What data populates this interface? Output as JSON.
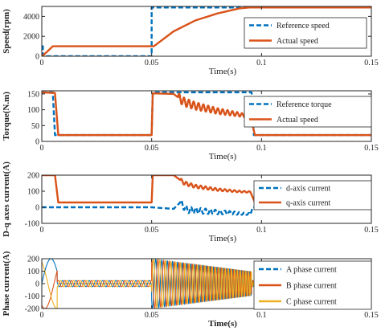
{
  "chart_data": [
    {
      "type": "line",
      "ylabel": "Speed(rpm)",
      "xlabel": "Time(s)",
      "xlim": [
        0,
        0.15
      ],
      "ylim": [
        0,
        5000
      ],
      "xticks": [
        "0",
        "0.05",
        "0.1",
        "0.15"
      ],
      "yticks": [
        "0",
        "2000",
        "4000"
      ],
      "ytick_values": [
        0,
        2000,
        4000
      ],
      "legend_position": "right",
      "series": [
        {
          "name": "Reference speed",
          "color": "#0072BD",
          "style": "dashed",
          "points": [
            [
              0,
              1000
            ],
            [
              0.0005,
              1000
            ],
            [
              0.0005,
              0
            ],
            [
              0.05,
              0
            ],
            [
              0.05,
              4900
            ],
            [
              0.15,
              4900
            ]
          ]
        },
        {
          "name": "Actual speed",
          "color": "#D95319",
          "style": "solid",
          "points": [
            [
              0,
              0
            ],
            [
              0.0002,
              0
            ],
            [
              0.005,
              1000
            ],
            [
              0.051,
              1000
            ],
            [
              0.06,
              2500
            ],
            [
              0.07,
              3600
            ],
            [
              0.08,
              4300
            ],
            [
              0.09,
              4800
            ],
            [
              0.095,
              4900
            ],
            [
              0.15,
              4900
            ]
          ]
        }
      ]
    },
    {
      "type": "line",
      "ylabel": "Torque(N.m)",
      "xlabel": "Time(s)",
      "xlim": [
        0,
        0.15
      ],
      "ylim": [
        0,
        160
      ],
      "xticks": [
        "0",
        "0.05",
        "0.1",
        "0.15"
      ],
      "yticks": [
        "0",
        "50",
        "100",
        "150"
      ],
      "ytick_values": [
        0,
        50,
        100,
        150
      ],
      "legend_position": "right",
      "series": [
        {
          "name": "Reference torque",
          "color": "#0072BD",
          "style": "dashed",
          "points": [
            [
              0,
              155
            ],
            [
              0.005,
              155
            ],
            [
              0.006,
              20
            ],
            [
              0.05,
              20
            ],
            [
              0.0505,
              155
            ],
            [
              0.0955,
              155
            ],
            [
              0.0965,
              20
            ],
            [
              0.15,
              20
            ]
          ]
        },
        {
          "name": "Actual speed",
          "color": "#D95319",
          "style": "solid",
          "oscillate": {
            "from": 0.062,
            "to": 0.095,
            "amp_start": 14,
            "amp_end": 5,
            "period": 0.0022
          },
          "points": [
            [
              0,
              155
            ],
            [
              0.006,
              153
            ],
            [
              0.0075,
              20
            ],
            [
              0.05,
              20
            ],
            [
              0.0505,
              152
            ],
            [
              0.06,
              150
            ],
            [
              0.065,
              124
            ],
            [
              0.07,
              112
            ],
            [
              0.08,
              96
            ],
            [
              0.09,
              85
            ],
            [
              0.095,
              78
            ],
            [
              0.097,
              20
            ],
            [
              0.15,
              20
            ]
          ]
        }
      ]
    },
    {
      "type": "line",
      "ylabel": "D-q axes current(A)",
      "xlabel": "Time(s)",
      "xlim": [
        0,
        0.15
      ],
      "ylim": [
        -100,
        200
      ],
      "xticks": [
        "0",
        "0.05",
        "0.1",
        "0.15"
      ],
      "yticks": [
        "-100",
        "0",
        "100",
        "200"
      ],
      "ytick_values": [
        -100,
        0,
        100,
        200
      ],
      "legend_position": "right",
      "series": [
        {
          "name": "d-axis current",
          "color": "#0072BD",
          "style": "dashed",
          "oscillate": {
            "from": 0.063,
            "to": 0.095,
            "amp_start": 22,
            "amp_end": 6,
            "period": 0.0022
          },
          "points": [
            [
              0,
              0
            ],
            [
              0.05,
              0
            ],
            [
              0.06,
              -10
            ],
            [
              0.063,
              30
            ],
            [
              0.066,
              -15
            ],
            [
              0.07,
              -20
            ],
            [
              0.08,
              -30
            ],
            [
              0.09,
              -38
            ],
            [
              0.095,
              -42
            ],
            [
              0.096,
              0
            ],
            [
              0.15,
              0
            ]
          ]
        },
        {
          "name": "q-axis current",
          "color": "#D95319",
          "style": "solid",
          "oscillate": {
            "from": 0.063,
            "to": 0.095,
            "amp_start": 12,
            "amp_end": 4,
            "period": 0.0022
          },
          "points": [
            [
              0,
              200
            ],
            [
              0.006,
              200
            ],
            [
              0.0075,
              30
            ],
            [
              0.05,
              30
            ],
            [
              0.0505,
              200
            ],
            [
              0.06,
              200
            ],
            [
              0.065,
              150
            ],
            [
              0.07,
              130
            ],
            [
              0.08,
              110
            ],
            [
              0.09,
              98
            ],
            [
              0.095,
              95
            ],
            [
              0.097,
              30
            ],
            [
              0.15,
              30
            ]
          ]
        }
      ]
    },
    {
      "type": "line",
      "ylabel": "Phase current(A)",
      "xlabel": "Time(s)",
      "xlim": [
        0,
        0.15
      ],
      "ylim": [
        -200,
        200
      ],
      "xticks": [
        "0",
        "0.05",
        "0.1",
        "0.15"
      ],
      "yticks": [
        "-200",
        "-100",
        "0",
        "100",
        "200"
      ],
      "ytick_values": [
        -200,
        -100,
        0,
        100,
        200
      ],
      "legend_position": "right",
      "series": [
        {
          "name": "A phase current",
          "color": "#0072BD",
          "style": "dashed",
          "phase_deg": 0
        },
        {
          "name": "B phase current",
          "color": "#D95319",
          "style": "solid",
          "phase_deg": -120
        },
        {
          "name": "C phase current",
          "color": "#EDB120",
          "style": "solid",
          "phase_deg": 120
        }
      ],
      "phase_model": [
        {
          "t0": 0,
          "t1": 0.007,
          "amp0": 200,
          "amp1": 200,
          "freq0": 60,
          "freq1": 60
        },
        {
          "t0": 0.007,
          "t1": 0.05,
          "amp0": 25,
          "amp1": 25,
          "freq0": 330,
          "freq1": 330
        },
        {
          "t0": 0.05,
          "t1": 0.0955,
          "amp0": 200,
          "amp1": 95,
          "freq0": 330,
          "freq1": 830
        },
        {
          "t0": 0.0955,
          "t1": 0.15,
          "amp0": 25,
          "amp1": 25,
          "freq0": 830,
          "freq1": 830
        }
      ]
    }
  ]
}
